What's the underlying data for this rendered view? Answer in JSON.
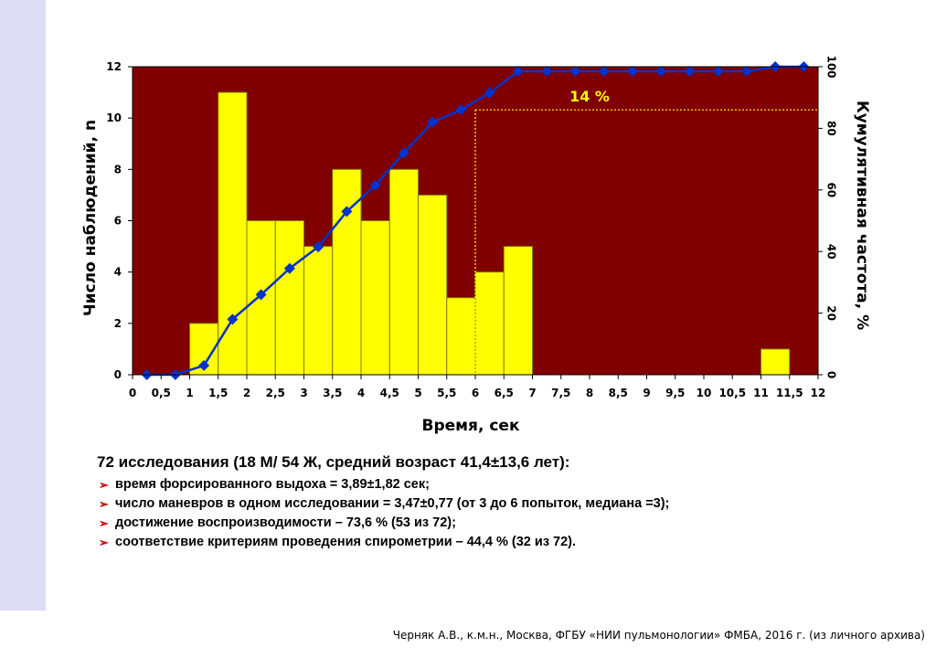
{
  "chart_data": {
    "type": "bar",
    "subtype": "histogram with cumulative frequency line",
    "xlabel": "Время, сек",
    "ylabel": "Число наблюдений, n",
    "y2label": "Кумулятивная частота, %",
    "xlim": [
      0,
      12
    ],
    "ylim": [
      0,
      12
    ],
    "y2lim": [
      0,
      100
    ],
    "x_ticks": [
      "0",
      "0,5",
      "1",
      "1,5",
      "2",
      "2,5",
      "3",
      "3,5",
      "4",
      "4,5",
      "5",
      "5,5",
      "6",
      "6,5",
      "7",
      "7,5",
      "8",
      "8,5",
      "9",
      "9,5",
      "10",
      "10,5",
      "11",
      "11,5",
      "12"
    ],
    "y_ticks": [
      "0",
      "2",
      "4",
      "6",
      "8",
      "10",
      "12"
    ],
    "y2_ticks": [
      "0",
      "20",
      "40",
      "60",
      "80",
      "100"
    ],
    "bin_width": 0.5,
    "bins": [
      {
        "start": 1.0,
        "value": 2
      },
      {
        "start": 1.5,
        "value": 11
      },
      {
        "start": 2.0,
        "value": 6
      },
      {
        "start": 2.5,
        "value": 6
      },
      {
        "start": 3.0,
        "value": 5
      },
      {
        "start": 3.5,
        "value": 8
      },
      {
        "start": 4.0,
        "value": 6
      },
      {
        "start": 4.5,
        "value": 8
      },
      {
        "start": 5.0,
        "value": 7
      },
      {
        "start": 5.5,
        "value": 3
      },
      {
        "start": 6.0,
        "value": 4
      },
      {
        "start": 6.5,
        "value": 5
      },
      {
        "start": 11.0,
        "value": 1
      }
    ],
    "cumulative": {
      "x": [
        0.25,
        0.75,
        1.25,
        1.75,
        2.25,
        2.75,
        3.25,
        3.75,
        4.25,
        4.75,
        5.25,
        5.75,
        6.25,
        6.75,
        7.25,
        7.75,
        8.25,
        8.75,
        9.25,
        9.75,
        10.25,
        10.75,
        11.25,
        11.75
      ],
      "y": [
        0,
        0,
        3,
        18,
        26,
        34.5,
        41.5,
        53,
        61.5,
        72,
        82,
        86,
        91.5,
        98.5,
        98.5,
        98.5,
        98.5,
        98.5,
        98.5,
        98.5,
        98.5,
        98.5,
        100,
        100
      ]
    },
    "annotation": {
      "text": "14 %",
      "x_from": 6.0,
      "y": 86
    },
    "colors": {
      "plot_bg": "#800000",
      "bar": "#ffff00",
      "bar_edge": "#808000",
      "line": "#0033cc",
      "annotation": "#ffff00"
    },
    "grid": false
  },
  "summary": {
    "title": "72 исследования (18 М/ 54 Ж, средний возраст 41,4±13,6 лет):",
    "bullet_icon": "arrow-bullet",
    "items": [
      "время форсированного выдоха = 3,89±1,82 сек;",
      "число маневров в одном исследовании = 3,47±0,77 (от 3 до 6 попыток, медиана =3);",
      "достижение воспроизводимости – 73,6 % (53 из 72);",
      "соответствие критериям проведения спирометрии – 44,4 % (32 из 72)."
    ]
  },
  "footer": "Черняк А.В., к.м.н., Москва, ФГБУ «НИИ пульмонологии» ФМБА, 2016 г. (из личного архива)"
}
